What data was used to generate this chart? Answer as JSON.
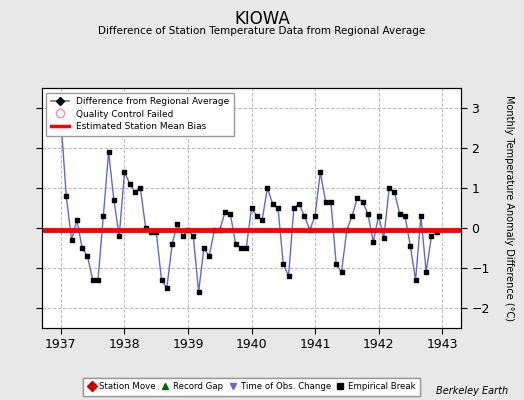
{
  "title": "KIOWA",
  "subtitle": "Difference of Station Temperature Data from Regional Average",
  "ylabel_right": "Monthly Temperature Anomaly Difference (°C)",
  "watermark": "Berkeley Earth",
  "xlim": [
    1936.7,
    1943.3
  ],
  "ylim": [
    -2.5,
    3.5
  ],
  "yticks": [
    -2,
    -1,
    0,
    1,
    2,
    3
  ],
  "xticks": [
    1937,
    1938,
    1939,
    1940,
    1941,
    1942,
    1943
  ],
  "bias_line_y": -0.05,
  "line_color": "#6666cc",
  "marker_color": "#000000",
  "bias_color": "#ff0000",
  "bg_color": "#e8e8e8",
  "plot_bg_color": "#ffffff",
  "grid_color": "#bbbbbb",
  "data_x": [
    1937.0,
    1937.083,
    1937.167,
    1937.25,
    1937.333,
    1937.417,
    1937.5,
    1937.583,
    1937.667,
    1937.75,
    1937.833,
    1937.917,
    1938.0,
    1938.083,
    1938.167,
    1938.25,
    1938.333,
    1938.417,
    1938.5,
    1938.583,
    1938.667,
    1938.75,
    1938.833,
    1938.917,
    1939.0,
    1939.083,
    1939.167,
    1939.25,
    1939.333,
    1939.417,
    1939.5,
    1939.583,
    1939.667,
    1939.75,
    1939.833,
    1939.917,
    1940.0,
    1940.083,
    1940.167,
    1940.25,
    1940.333,
    1940.417,
    1940.5,
    1940.583,
    1940.667,
    1940.75,
    1940.833,
    1940.917,
    1941.0,
    1941.083,
    1941.167,
    1941.25,
    1941.333,
    1941.417,
    1941.5,
    1941.583,
    1941.667,
    1941.75,
    1941.833,
    1941.917,
    1942.0,
    1942.083,
    1942.167,
    1942.25,
    1942.333,
    1942.417,
    1942.5,
    1942.583,
    1942.667,
    1942.75,
    1942.833,
    1942.917
  ],
  "data_y": [
    2.7,
    0.8,
    -0.3,
    0.2,
    -0.5,
    -0.7,
    -1.3,
    -1.3,
    0.3,
    1.9,
    0.7,
    -0.2,
    1.4,
    1.1,
    0.9,
    1.0,
    0.0,
    -0.1,
    -0.1,
    -1.3,
    -1.5,
    -0.4,
    0.1,
    -0.2,
    -0.05,
    -0.2,
    -1.6,
    -0.5,
    -0.7,
    -0.05,
    -0.05,
    0.4,
    0.35,
    -0.4,
    -0.5,
    -0.5,
    0.5,
    0.3,
    0.2,
    1.0,
    0.6,
    0.5,
    -0.9,
    -1.2,
    0.5,
    0.6,
    0.3,
    -0.05,
    0.3,
    1.4,
    0.65,
    0.65,
    -0.9,
    -1.1,
    -0.05,
    0.3,
    0.75,
    0.65,
    0.35,
    -0.35,
    0.3,
    -0.25,
    1.0,
    0.9,
    0.35,
    0.3,
    -0.45,
    -1.3,
    0.3,
    -1.1,
    -0.2,
    -0.1
  ]
}
